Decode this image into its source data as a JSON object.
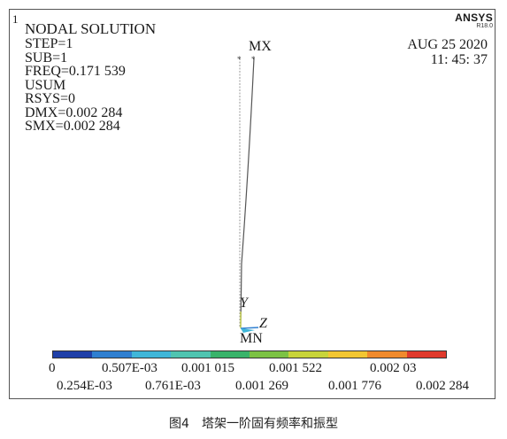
{
  "window": {
    "number": "1"
  },
  "solution": {
    "title": "NODAL SOLUTION",
    "lines": [
      "STEP=1",
      "SUB=1",
      "FREQ=0.171 539",
      "USUM",
      "RSYS=0",
      "DMX=0.002 284",
      "SMX=0.002 284"
    ]
  },
  "logo": {
    "brand": "ANSYS",
    "version": "R18.0"
  },
  "timestamp": {
    "date": "AUG 25 2020",
    "time": "11: 45: 37"
  },
  "model_labels": {
    "max": "MX",
    "min": "MN",
    "axis_y": "Y",
    "axis_z": "Z"
  },
  "legend": {
    "colors": [
      "#1f3fa8",
      "#2f7fd0",
      "#3fb6d8",
      "#4fc4b0",
      "#39b36a",
      "#7cc244",
      "#c8d43a",
      "#f2c632",
      "#f08a2c",
      "#e03a2c"
    ],
    "values_top": [
      "0",
      "0.507E-03",
      "0.001 015",
      "0.001 522",
      "0.002 03"
    ],
    "values_bottom": [
      "0.254E-03",
      "0.761E-03",
      "0.001 269",
      "0.001 776",
      "0.002 284"
    ]
  },
  "caption": "图4　塔架一阶固有频率和振型"
}
